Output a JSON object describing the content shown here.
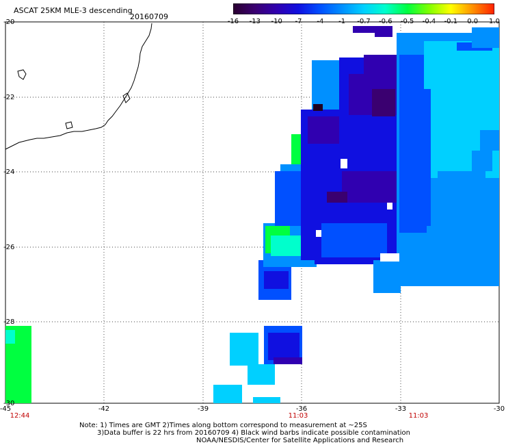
{
  "header": {
    "title": "ASCAT 25KM MLE-3 descending",
    "date": "20160709"
  },
  "colorbar": {
    "labels": [
      "-16",
      "-13",
      "-10",
      "-7",
      "-4",
      "-1",
      "-0.7",
      "-0.6",
      "-0.5",
      "-0.4",
      "-0.1",
      "0.0",
      "1.0"
    ],
    "colors": [
      "#2a0030",
      "#3a0070",
      "#3000b0",
      "#1010e0",
      "#0050ff",
      "#0090ff",
      "#00d0ff",
      "#00ffcc",
      "#00ff40",
      "#80ff00",
      "#ffff00",
      "#ff9000",
      "#ff2000"
    ]
  },
  "axes": {
    "y_labels": [
      "-20",
      "-22",
      "-24",
      "-26",
      "-28",
      "-30"
    ],
    "x_labels": [
      "-45",
      "-42",
      "-39",
      "-36",
      "-33",
      "-30"
    ],
    "time_labels": [
      "12:44",
      "11:03",
      "11:03"
    ],
    "time_color": "#c00000"
  },
  "notes": {
    "line1": "Note: 1) Times are GMT 2)Times along bottom correspond to measurement at ~25S",
    "line2": "3)Data buffer is 22 hrs from 20160709 4) Black wind barbs indicate possible contamination",
    "line3": "NOAA/NESDIS/Center for Satellite Applications and Research"
  }
}
